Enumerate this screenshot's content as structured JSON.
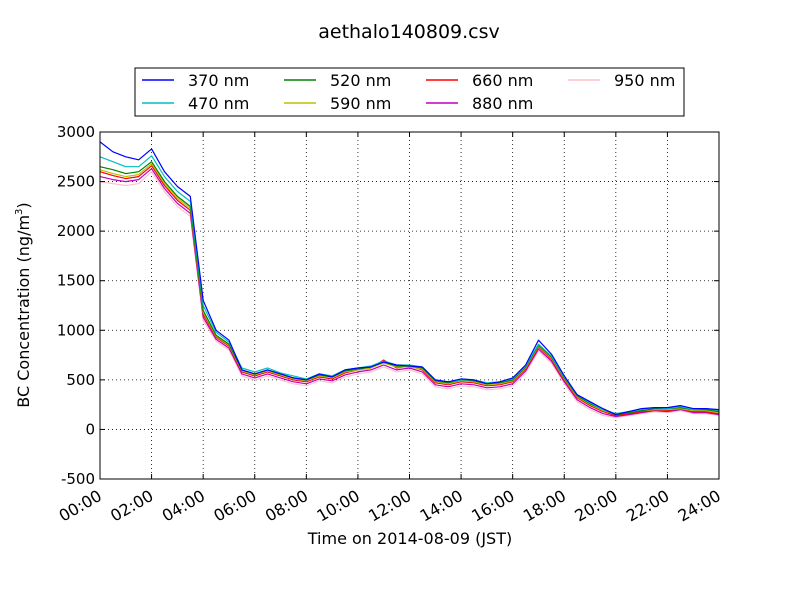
{
  "chart_data": {
    "type": "line",
    "title": "aethalo140809.csv",
    "xlabel": "Time on 2014-08-09 (JST)",
    "ylabel": "BC Concentration (ng/m",
    "ylabel_sup": "3",
    "ylabel_end": ")",
    "xlim": [
      "00:00",
      "24:00"
    ],
    "ylim": [
      -500,
      3000
    ],
    "xticks": [
      "00:00",
      "02:00",
      "04:00",
      "06:00",
      "08:00",
      "10:00",
      "12:00",
      "14:00",
      "16:00",
      "18:00",
      "20:00",
      "22:00",
      "24:00"
    ],
    "yticks": [
      -500,
      0,
      500,
      1000,
      1500,
      2000,
      2500,
      3000
    ],
    "grid": true,
    "legend_position": "top",
    "x_times": [
      "00:00",
      "00:30",
      "01:00",
      "01:30",
      "02:00",
      "02:30",
      "03:00",
      "03:30",
      "04:00",
      "04:30",
      "05:00",
      "05:30",
      "06:00",
      "06:30",
      "07:00",
      "07:30",
      "08:00",
      "08:30",
      "09:00",
      "09:30",
      "10:00",
      "10:30",
      "11:00",
      "11:30",
      "12:00",
      "12:30",
      "13:00",
      "13:30",
      "14:00",
      "14:30",
      "15:00",
      "15:30",
      "16:00",
      "16:30",
      "17:00",
      "17:30",
      "18:00",
      "18:30",
      "19:00",
      "19:30",
      "20:00",
      "20:30",
      "21:00",
      "21:30",
      "22:00",
      "22:30",
      "23:00",
      "23:30",
      "24:00"
    ],
    "series": [
      {
        "name": "370 nm",
        "color": "#0000ff",
        "values": [
          2900,
          2800,
          2750,
          2720,
          2830,
          2600,
          2450,
          2350,
          1300,
          1000,
          900,
          600,
          560,
          600,
          560,
          520,
          500,
          560,
          530,
          600,
          620,
          630,
          680,
          650,
          640,
          630,
          500,
          480,
          510,
          500,
          460,
          480,
          520,
          650,
          900,
          760,
          540,
          350,
          280,
          210,
          150,
          180,
          210,
          220,
          220,
          240,
          210,
          210,
          200
        ]
      },
      {
        "name": "470 nm",
        "color": "#00bfbf",
        "values": [
          2750,
          2700,
          2650,
          2650,
          2760,
          2550,
          2400,
          2300,
          1250,
          980,
          880,
          620,
          580,
          620,
          570,
          540,
          510,
          560,
          540,
          600,
          620,
          640,
          690,
          650,
          650,
          630,
          500,
          480,
          500,
          500,
          470,
          480,
          510,
          640,
          860,
          740,
          530,
          350,
          270,
          200,
          160,
          180,
          200,
          220,
          210,
          230,
          200,
          210,
          190
        ]
      },
      {
        "name": "520 nm",
        "color": "#008000",
        "values": [
          2650,
          2620,
          2580,
          2600,
          2700,
          2500,
          2350,
          2250,
          1200,
          950,
          860,
          600,
          560,
          600,
          560,
          520,
          500,
          550,
          530,
          590,
          610,
          630,
          680,
          640,
          640,
          620,
          490,
          470,
          500,
          490,
          460,
          470,
          500,
          630,
          850,
          730,
          520,
          340,
          260,
          200,
          150,
          170,
          190,
          210,
          210,
          220,
          200,
          200,
          180
        ]
      },
      {
        "name": "590 nm",
        "color": "#bfbf00",
        "values": [
          2620,
          2580,
          2550,
          2570,
          2680,
          2480,
          2330,
          2230,
          1180,
          940,
          850,
          590,
          550,
          590,
          550,
          510,
          490,
          540,
          520,
          580,
          600,
          620,
          670,
          630,
          630,
          610,
          480,
          460,
          490,
          480,
          450,
          460,
          490,
          620,
          840,
          720,
          510,
          330,
          250,
          190,
          150,
          170,
          190,
          200,
          200,
          210,
          190,
          190,
          170
        ]
      },
      {
        "name": "660 nm",
        "color": "#ff0000",
        "values": [
          2600,
          2560,
          2530,
          2550,
          2660,
          2460,
          2310,
          2210,
          1160,
          930,
          840,
          580,
          540,
          580,
          540,
          500,
          480,
          530,
          510,
          570,
          600,
          620,
          700,
          620,
          640,
          600,
          470,
          450,
          480,
          470,
          440,
          450,
          480,
          610,
          830,
          710,
          500,
          320,
          240,
          180,
          140,
          160,
          180,
          200,
          190,
          210,
          180,
          180,
          160
        ]
      },
      {
        "name": "880 nm",
        "color": "#bf00bf",
        "values": [
          2550,
          2520,
          2500,
          2520,
          2630,
          2430,
          2280,
          2180,
          1130,
          910,
          820,
          560,
          520,
          560,
          520,
          480,
          460,
          510,
          490,
          550,
          580,
          600,
          650,
          600,
          620,
          580,
          450,
          430,
          460,
          450,
          420,
          430,
          460,
          590,
          810,
          690,
          480,
          300,
          220,
          160,
          130,
          150,
          170,
          190,
          180,
          200,
          170,
          170,
          150
        ]
      },
      {
        "name": "950 nm",
        "color": "#ffc0cb",
        "values": [
          2500,
          2480,
          2460,
          2480,
          2600,
          2400,
          2250,
          2150,
          1100,
          890,
          800,
          540,
          500,
          540,
          500,
          460,
          440,
          490,
          470,
          530,
          560,
          580,
          630,
          580,
          600,
          560,
          430,
          410,
          440,
          430,
          400,
          410,
          440,
          570,
          790,
          670,
          460,
          280,
          200,
          140,
          120,
          140,
          160,
          180,
          170,
          190,
          160,
          160,
          140
        ]
      }
    ]
  }
}
